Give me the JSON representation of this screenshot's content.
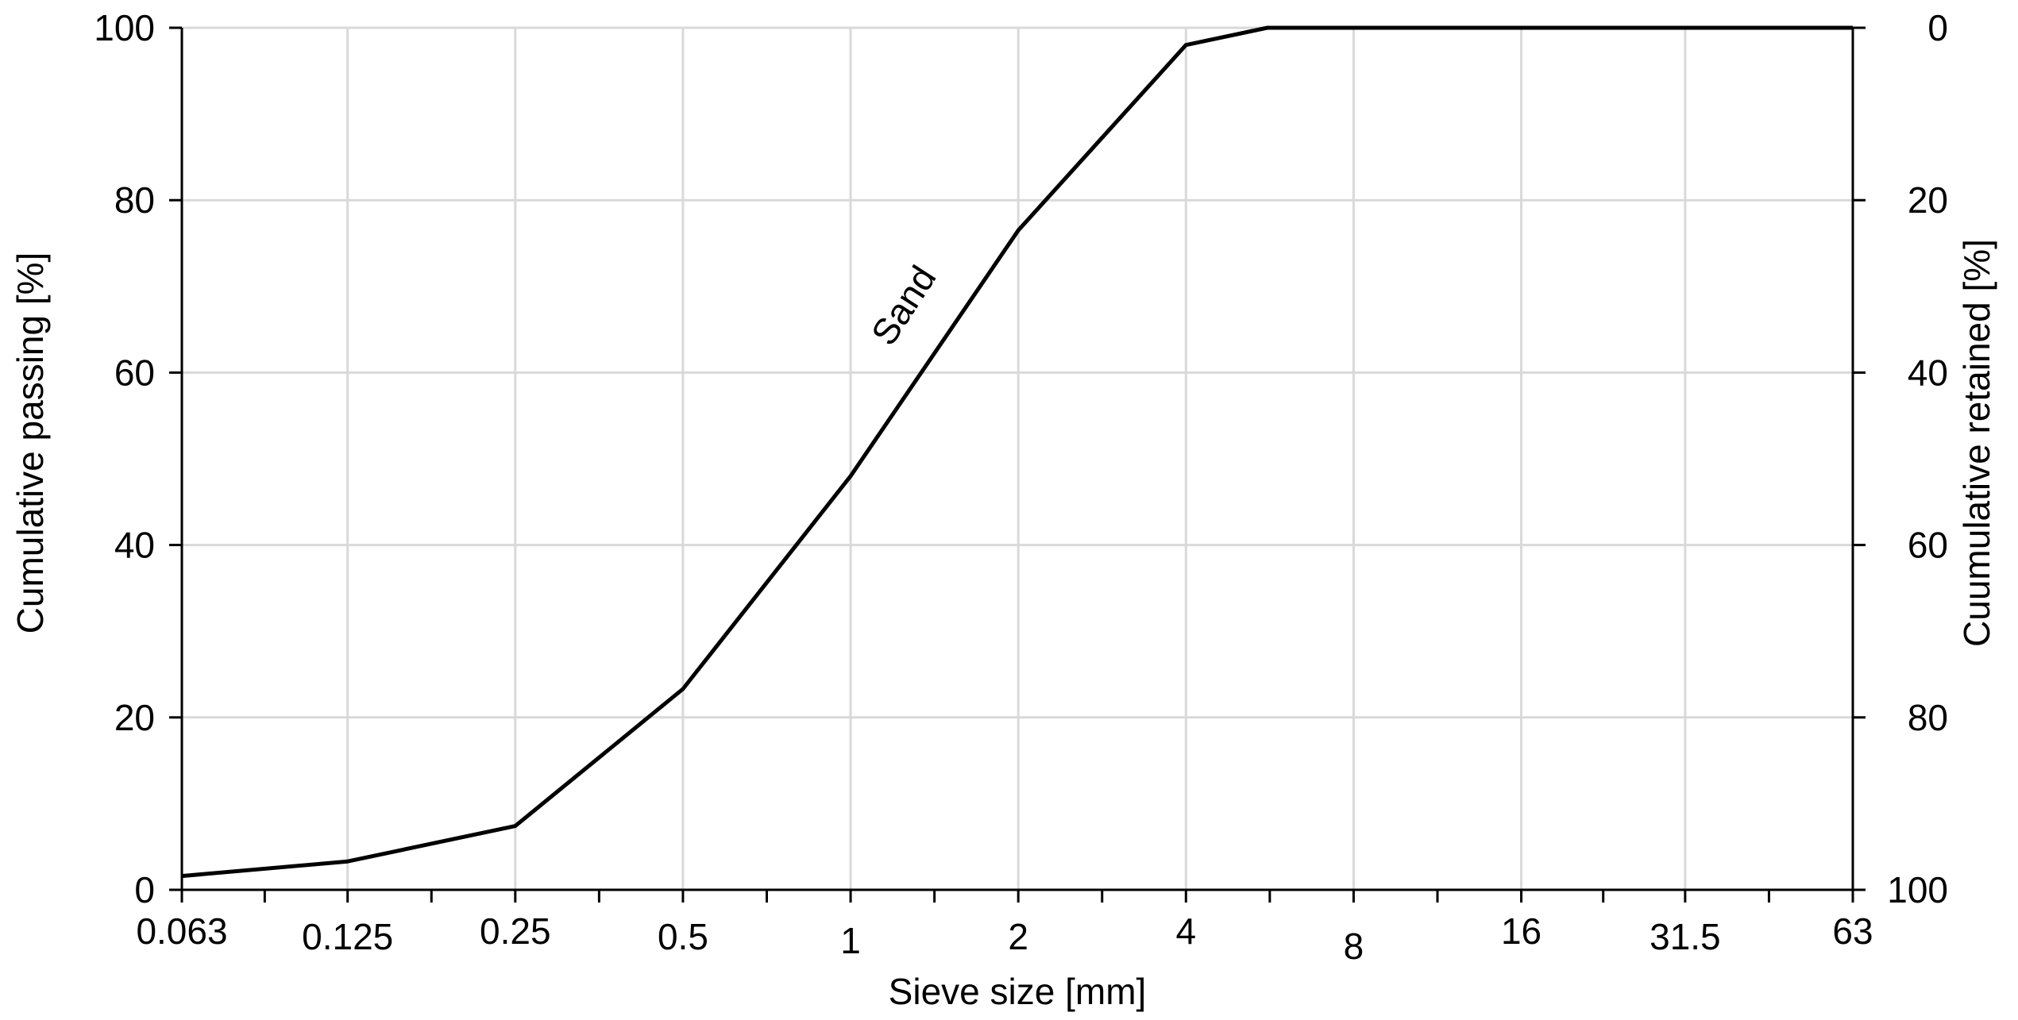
{
  "chart_data": {
    "type": "line",
    "xscale": "log2",
    "xlabel": "Sieve size [mm]",
    "ylabel": "Cumulative passing [%]",
    "y2label": "Cuumulative retained [%]",
    "xlim": [
      0.063,
      63
    ],
    "ylim": [
      0,
      100
    ],
    "y2lim": [
      100,
      0
    ],
    "grid": true,
    "x_ticks": [
      {
        "value": 0.063,
        "label": "0.063"
      },
      {
        "value": 0.125,
        "label": "0.125"
      },
      {
        "value": 0.25,
        "label": "0.25"
      },
      {
        "value": 0.5,
        "label": "0.5"
      },
      {
        "value": 1,
        "label": "1"
      },
      {
        "value": 2,
        "label": "2"
      },
      {
        "value": 4,
        "label": "4"
      },
      {
        "value": 8,
        "label": "8"
      },
      {
        "value": 16,
        "label": "16"
      },
      {
        "value": 31.5,
        "label": "31.5"
      },
      {
        "value": 63,
        "label": "63"
      }
    ],
    "y_ticks": [
      "0",
      "20",
      "40",
      "60",
      "80",
      "100"
    ],
    "y_tick_values": [
      0,
      20,
      40,
      60,
      80,
      100
    ],
    "y2_ticks": [
      "100",
      "80",
      "60",
      "40",
      "20",
      "0"
    ],
    "series": [
      {
        "name": "Sand",
        "color": "#000000",
        "x": [
          0.063,
          0.125,
          0.25,
          0.5,
          1,
          2,
          4,
          5.6,
          63
        ],
        "y": [
          1.6,
          3.3,
          7.4,
          23.3,
          48,
          76.5,
          98,
          100,
          100
        ]
      }
    ],
    "annotations": [
      {
        "text": "Sand",
        "x": 1.3,
        "y": 67,
        "rotation": -57
      }
    ]
  }
}
